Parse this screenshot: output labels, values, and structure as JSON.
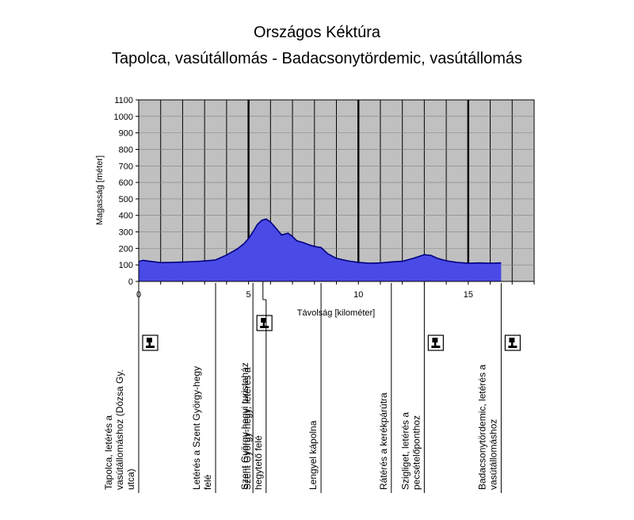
{
  "chart_data": {
    "type": "area",
    "title": "Országos Kéktúra",
    "subtitle": "Tapolca, vasútállomás - Badacsonytördemic, vasútállomás",
    "xlabel": "Távolság [kilométer]",
    "ylabel": "Magasság [méter]",
    "xlim": [
      0,
      18
    ],
    "ylim": [
      0,
      1100
    ],
    "x_ticks": [
      0,
      5,
      10,
      15
    ],
    "y_ticks": [
      0,
      100,
      200,
      300,
      400,
      500,
      600,
      700,
      800,
      900,
      1000,
      1100
    ],
    "grid": true,
    "series": [
      {
        "x": [
          0,
          0.2,
          0.5,
          1.0,
          1.5,
          2.0,
          2.5,
          3.0,
          3.5,
          4.0,
          4.5,
          4.8,
          5.0,
          5.2,
          5.4,
          5.6,
          5.8,
          6.0,
          6.2,
          6.5,
          6.8,
          7.0,
          7.2,
          7.5,
          7.8,
          8.0,
          8.3,
          8.6,
          9.0,
          9.5,
          10.0,
          10.5,
          11.0,
          11.5,
          12.0,
          12.5,
          13.0,
          13.3,
          13.6,
          14.0,
          14.5,
          15.0,
          15.5,
          16.0,
          16.5
        ],
        "y": [
          120,
          128,
          122,
          114,
          115,
          117,
          120,
          124,
          130,
          160,
          198,
          230,
          260,
          300,
          345,
          370,
          378,
          360,
          330,
          282,
          292,
          272,
          246,
          235,
          220,
          212,
          205,
          168,
          140,
          125,
          115,
          110,
          112,
          118,
          122,
          140,
          162,
          158,
          140,
          125,
          115,
          110,
          112,
          110,
          112
        ]
      }
    ],
    "thick_lines_km": [
      5,
      10,
      15
    ],
    "waypoints": [
      {
        "km": 0,
        "label": "Tapolca, letérés a vasútállomáshoz (Dózsa Gy. utca)",
        "stamp": true,
        "line_top": 357,
        "line_bottom": 622
      },
      {
        "km": 3.5,
        "label": "Letérés a Szent György-hegy felé",
        "stamp": false,
        "line_top": 357,
        "line_bottom": 622
      },
      {
        "km": 5.2,
        "label": "Szent György-hegyi turistaház",
        "stamp": true,
        "line_top": 357,
        "line_bottom": 622
      },
      {
        "km": 5.8,
        "label": "Szent György-hegy, letérés a hegytető felé",
        "stamp": false,
        "line_top": 378,
        "line_bottom": 622
      },
      {
        "km": 8.3,
        "label": "Lengyel kápolna",
        "stamp": false,
        "line_top": 357,
        "line_bottom": 622
      },
      {
        "km": 11.5,
        "label": "Rátérés a kerékpárútra",
        "stamp": false,
        "line_top": 357,
        "line_bottom": 622
      },
      {
        "km": 13.0,
        "label": "Szigliget, letérés a pecsételőponthoz",
        "stamp": true,
        "line_top": 357,
        "line_bottom": 622
      },
      {
        "km": 16.5,
        "label": "Badacsonytördemic, letérés a vasútállomáshoz",
        "stamp": true,
        "line_top": 357,
        "line_bottom": 622
      }
    ],
    "colors": {
      "plot_bg": "#c0c0c0",
      "fill": "#4a4ae6",
      "line": "#000080"
    }
  }
}
